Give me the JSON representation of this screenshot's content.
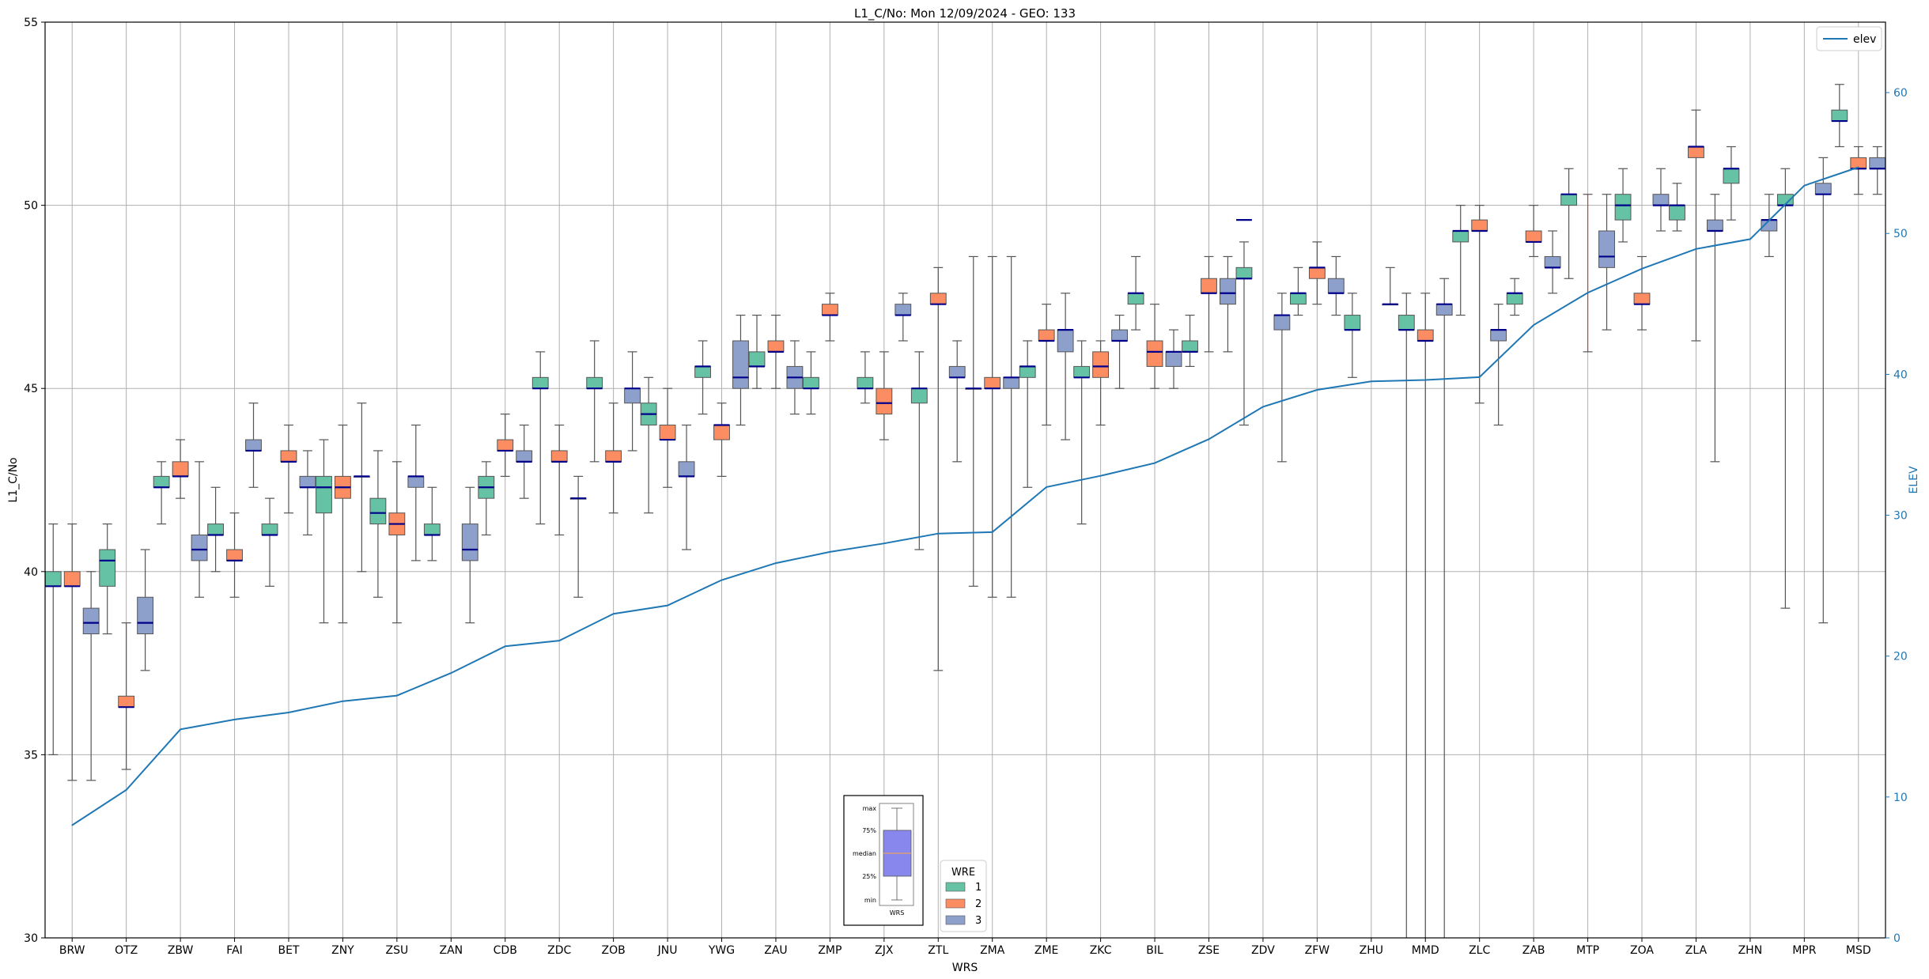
{
  "chart_data": {
    "type": "box",
    "title": "L1_C/No: Mon 12/09/2024 - GEO: 133",
    "xlabel": "WRS",
    "ylabel": "L1_C/No",
    "y2label": "ELEV",
    "ylim": [
      30,
      55
    ],
    "y2lim": [
      0,
      65
    ],
    "yticks": [
      30,
      35,
      40,
      45,
      50,
      55
    ],
    "y2ticks": [
      0,
      10,
      20,
      30,
      40,
      50,
      60
    ],
    "grid": true,
    "categories": [
      "BRW",
      "OTZ",
      "ZBW",
      "FAI",
      "BET",
      "ZNY",
      "ZSU",
      "ZAN",
      "CDB",
      "ZDC",
      "ZOB",
      "JNU",
      "YWG",
      "ZAU",
      "ZMP",
      "ZJX",
      "ZTL",
      "ZMA",
      "ZME",
      "ZKC",
      "BIL",
      "ZSE",
      "ZDV",
      "ZFW",
      "ZHU",
      "MMD",
      "ZLC",
      "ZAB",
      "MTP",
      "ZOA",
      "ZLA",
      "ZHN",
      "MPR",
      "MSD"
    ],
    "wre_colors": {
      "1": "#66c2a5",
      "2": "#fc8d62",
      "3": "#8da0cb"
    },
    "series": [
      {
        "name": "1",
        "boxes": [
          [
            35.0,
            39.6,
            39.6,
            40.0,
            41.3
          ],
          [
            38.3,
            39.6,
            40.3,
            40.6,
            41.3
          ],
          [
            41.3,
            42.3,
            42.3,
            42.6,
            43.0
          ],
          [
            40.0,
            41.0,
            41.0,
            41.3,
            42.3
          ],
          [
            39.6,
            41.0,
            41.0,
            41.3,
            42.0
          ],
          [
            38.6,
            41.6,
            42.3,
            42.6,
            43.6
          ],
          [
            39.3,
            41.3,
            41.6,
            42.0,
            43.3
          ],
          [
            40.3,
            41.0,
            41.0,
            41.3,
            42.3
          ],
          [
            41.0,
            42.0,
            42.3,
            42.6,
            43.0
          ],
          [
            41.3,
            45.0,
            45.0,
            45.3,
            46.0
          ],
          [
            43.0,
            45.0,
            45.0,
            45.3,
            46.3
          ],
          [
            41.6,
            44.0,
            44.3,
            44.6,
            45.3
          ],
          [
            44.3,
            45.3,
            45.6,
            45.6,
            46.3
          ],
          [
            45.0,
            45.6,
            45.6,
            46.0,
            47.0
          ],
          [
            44.3,
            45.0,
            45.0,
            45.3,
            46.0
          ],
          [
            44.6,
            45.0,
            45.0,
            45.3,
            46.0
          ],
          [
            40.6,
            44.6,
            45.0,
            45.0,
            46.0
          ],
          [
            39.6,
            45.0,
            45.0,
            45.0,
            48.6
          ],
          [
            42.3,
            45.3,
            45.6,
            45.6,
            46.3
          ],
          [
            41.3,
            45.3,
            45.3,
            45.6,
            46.3
          ],
          [
            46.6,
            47.3,
            47.6,
            47.6,
            48.6
          ],
          [
            45.6,
            46.0,
            46.0,
            46.3,
            47.0
          ],
          [
            44.0,
            48.0,
            48.0,
            48.3,
            49.0
          ],
          [
            47.0,
            47.3,
            47.6,
            47.6,
            48.3
          ],
          [
            45.3,
            46.6,
            46.6,
            47.0,
            47.6
          ],
          [
            0.0,
            46.6,
            46.6,
            47.0,
            47.6
          ],
          [
            47.0,
            49.0,
            49.3,
            49.3,
            50.0
          ],
          [
            47.0,
            47.3,
            47.6,
            47.6,
            48.0
          ],
          [
            48.0,
            50.0,
            50.3,
            50.3,
            51.0
          ],
          [
            49.0,
            49.6,
            50.0,
            50.3,
            51.0
          ],
          [
            49.3,
            49.6,
            50.0,
            50.0,
            50.6
          ],
          [
            49.6,
            50.6,
            51.0,
            51.0,
            51.6
          ],
          [
            39.0,
            50.0,
            50.0,
            50.3,
            51.0
          ],
          [
            51.6,
            52.3,
            52.3,
            52.6,
            53.3
          ]
        ]
      },
      {
        "name": "2",
        "boxes": [
          [
            34.3,
            39.6,
            39.6,
            40.0,
            41.3
          ],
          [
            34.6,
            36.3,
            36.3,
            36.6,
            38.6
          ],
          [
            42.0,
            42.6,
            42.6,
            43.0,
            43.6
          ],
          [
            39.3,
            40.3,
            40.3,
            40.6,
            41.6
          ],
          [
            41.6,
            43.0,
            43.0,
            43.3,
            44.0
          ],
          [
            38.6,
            42.0,
            42.3,
            42.6,
            44.0
          ],
          [
            38.6,
            41.0,
            41.3,
            41.6,
            43.0
          ],
          [
            null,
            null,
            null,
            null,
            null
          ],
          [
            42.6,
            43.3,
            43.3,
            43.6,
            44.3
          ],
          [
            41.0,
            43.0,
            43.0,
            43.3,
            44.0
          ],
          [
            41.6,
            43.0,
            43.0,
            43.3,
            44.6
          ],
          [
            42.3,
            43.6,
            43.6,
            44.0,
            45.0
          ],
          [
            42.6,
            43.6,
            44.0,
            44.0,
            44.6
          ],
          [
            45.0,
            46.0,
            46.0,
            46.3,
            47.0
          ],
          [
            46.3,
            47.0,
            47.0,
            47.3,
            47.6
          ],
          [
            43.6,
            44.3,
            44.6,
            45.0,
            46.0
          ],
          [
            37.3,
            47.3,
            47.3,
            47.6,
            48.3
          ],
          [
            39.3,
            45.0,
            45.0,
            45.3,
            48.6
          ],
          [
            44.0,
            46.3,
            46.3,
            46.6,
            47.3
          ],
          [
            44.0,
            45.3,
            45.6,
            46.0,
            46.3
          ],
          [
            45.0,
            45.6,
            46.0,
            46.3,
            47.3
          ],
          [
            46.0,
            47.6,
            47.6,
            48.0,
            48.6
          ],
          [
            null,
            null,
            null,
            null,
            null
          ],
          [
            47.3,
            48.0,
            48.3,
            48.3,
            49.0
          ],
          [
            null,
            null,
            null,
            null,
            null
          ],
          [
            0.0,
            46.3,
            46.3,
            46.6,
            47.6
          ],
          [
            44.6,
            49.3,
            49.3,
            49.6,
            50.0
          ],
          [
            48.6,
            49.0,
            49.0,
            49.3,
            50.0
          ],
          [
            46.0,
            null,
            null,
            null,
            50.3
          ],
          [
            46.6,
            47.3,
            47.3,
            47.6,
            48.6
          ],
          [
            46.3,
            51.3,
            51.6,
            51.6,
            52.6
          ],
          [
            null,
            null,
            null,
            null,
            null
          ],
          [
            null,
            null,
            null,
            null,
            null
          ],
          [
            50.3,
            51.0,
            51.0,
            51.3,
            51.6
          ]
        ]
      },
      {
        "name": "3",
        "boxes": [
          [
            34.3,
            38.3,
            38.6,
            39.0,
            40.0
          ],
          [
            37.3,
            38.3,
            38.6,
            39.3,
            40.6
          ],
          [
            39.3,
            40.3,
            40.6,
            41.0,
            43.0
          ],
          [
            42.3,
            43.3,
            43.3,
            43.6,
            44.6
          ],
          [
            41.0,
            42.3,
            42.3,
            42.6,
            43.3
          ],
          [
            40.0,
            42.6,
            42.6,
            42.6,
            44.6
          ],
          [
            40.3,
            42.3,
            42.6,
            42.6,
            44.0
          ],
          [
            38.6,
            40.3,
            40.6,
            41.3,
            42.3
          ],
          [
            42.0,
            43.0,
            43.0,
            43.3,
            44.0
          ],
          [
            39.3,
            42.0,
            42.0,
            42.0,
            42.6
          ],
          [
            43.3,
            44.6,
            45.0,
            45.0,
            46.0
          ],
          [
            40.6,
            42.6,
            42.6,
            43.0,
            44.0
          ],
          [
            44.0,
            45.0,
            45.3,
            46.3,
            47.0
          ],
          [
            44.3,
            45.0,
            45.3,
            45.6,
            46.3
          ],
          [
            null,
            null,
            null,
            null,
            null
          ],
          [
            46.3,
            47.0,
            47.0,
            47.3,
            47.6
          ],
          [
            43.0,
            45.3,
            45.3,
            45.6,
            46.3
          ],
          [
            39.3,
            45.0,
            45.3,
            45.3,
            48.6
          ],
          [
            43.6,
            46.0,
            46.6,
            46.6,
            47.6
          ],
          [
            45.0,
            46.3,
            46.3,
            46.6,
            47.0
          ],
          [
            45.0,
            45.6,
            46.0,
            46.0,
            46.6
          ],
          [
            46.0,
            47.3,
            47.6,
            48.0,
            48.6
          ],
          [
            43.0,
            46.6,
            47.0,
            47.0,
            47.6
          ],
          [
            47.0,
            47.6,
            47.6,
            48.0,
            48.6
          ],
          [
            47.3,
            47.3,
            47.3,
            47.3,
            48.3
          ],
          [
            0.0,
            47.0,
            47.3,
            47.3,
            48.0
          ],
          [
            44.0,
            46.3,
            46.6,
            46.6,
            47.3
          ],
          [
            47.6,
            48.3,
            48.3,
            48.6,
            49.3
          ],
          [
            46.6,
            48.3,
            48.6,
            49.3,
            50.3
          ],
          [
            49.3,
            50.0,
            50.0,
            50.3,
            51.0
          ],
          [
            43.0,
            49.3,
            49.3,
            49.6,
            50.3
          ],
          [
            48.6,
            49.3,
            49.6,
            49.6,
            50.3
          ],
          [
            38.6,
            50.3,
            50.3,
            50.6,
            51.3
          ],
          [
            50.3,
            51.0,
            51.0,
            51.3,
            51.6
          ]
        ]
      }
    ],
    "special_single": [
      {
        "category": "ZDV",
        "wre": "1",
        "value": 49.6
      }
    ],
    "elev": {
      "name": "elev",
      "values": [
        8.0,
        10.5,
        14.8,
        15.5,
        16.0,
        16.8,
        17.2,
        18.8,
        20.7,
        21.1,
        23.0,
        23.6,
        25.4,
        26.6,
        27.4,
        28.0,
        28.7,
        28.8,
        32.0,
        32.8,
        33.7,
        35.4,
        37.7,
        38.9,
        39.5,
        39.6,
        39.8,
        43.5,
        45.8,
        47.5,
        48.9,
        49.6,
        53.4,
        54.7
      ]
    },
    "legend_elev": "elev",
    "legend_wre_title": "WRE",
    "legend_wre_labels": [
      "1",
      "2",
      "3"
    ],
    "inset": {
      "labels": [
        "max",
        "75%",
        "median",
        "25%",
        "min"
      ],
      "xlabel": "WRS"
    }
  }
}
